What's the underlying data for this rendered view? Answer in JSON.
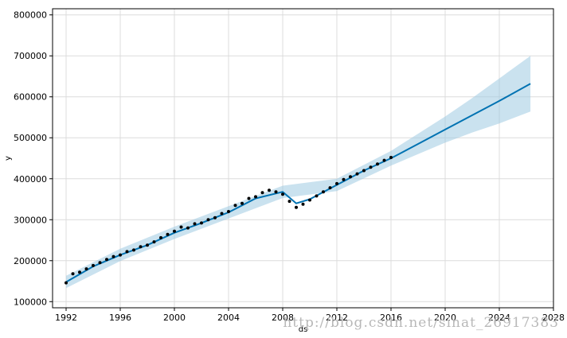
{
  "watermark": "http://blog.csdn.net/sinat_26917383",
  "colors": {
    "forecast_line": "#0072B2",
    "uncertainty_band": "#9ecae1",
    "observed_points": "#000000",
    "grid": "#dcdcdc",
    "axes": "#000000"
  },
  "chart_data": {
    "type": "line",
    "title": "",
    "xlabel": "ds",
    "ylabel": "y",
    "xlim": [
      1991.0,
      2028.0
    ],
    "ylim": [
      85000,
      815000
    ],
    "x_ticks": [
      1992,
      1996,
      2000,
      2004,
      2008,
      2012,
      2016,
      2020,
      2024,
      2028
    ],
    "x_tick_labels": [
      "1992",
      "1996",
      "2000",
      "2004",
      "2008",
      "2012",
      "2016",
      "2020",
      "2024",
      "2028"
    ],
    "y_ticks": [
      100000,
      200000,
      300000,
      400000,
      500000,
      600000,
      700000,
      800000
    ],
    "y_tick_labels": [
      "100000",
      "200000",
      "300000",
      "400000",
      "500000",
      "600000",
      "700000",
      "800000"
    ],
    "grid": true,
    "series": [
      {
        "kind": "observed",
        "style": "scatter",
        "x": [
          1992.0,
          1992.5,
          1993.0,
          1993.5,
          1994.0,
          1994.5,
          1995.0,
          1995.5,
          1996.0,
          1996.5,
          1997.0,
          1997.5,
          1998.0,
          1998.5,
          1999.0,
          1999.5,
          2000.0,
          2000.5,
          2001.0,
          2001.5,
          2002.0,
          2002.5,
          2003.0,
          2003.5,
          2004.0,
          2004.5,
          2005.0,
          2005.5,
          2006.0,
          2006.5,
          2007.0,
          2007.5,
          2008.0,
          2008.5,
          2009.0,
          2009.5,
          2010.0,
          2010.5,
          2011.0,
          2011.5,
          2012.0,
          2012.5,
          2013.0,
          2013.5,
          2014.0,
          2014.5,
          2015.0,
          2015.5,
          2016.0
        ],
        "values": [
          146000,
          168000,
          172000,
          180000,
          188000,
          195000,
          203000,
          210000,
          214000,
          222000,
          226000,
          234000,
          238000,
          246000,
          256000,
          264000,
          272000,
          282000,
          280000,
          290000,
          292000,
          300000,
          305000,
          315000,
          320000,
          335000,
          340000,
          352000,
          356000,
          366000,
          372000,
          368000,
          362000,
          345000,
          330000,
          338000,
          348000,
          358000,
          368000,
          378000,
          388000,
          398000,
          405000,
          412000,
          420000,
          428000,
          436000,
          445000,
          452000
        ]
      },
      {
        "kind": "forecast",
        "style": "line",
        "x": [
          1992.0,
          1994.0,
          1996.0,
          1998.0,
          2000.0,
          2002.0,
          2004.0,
          2006.0,
          2008.0,
          2009.0,
          2010.0,
          2012.0,
          2014.0,
          2016.0,
          2018.0,
          2020.0,
          2022.0,
          2024.0,
          2026.3
        ],
        "values": [
          148000,
          186000,
          214000,
          238000,
          268000,
          292000,
          318000,
          352000,
          368000,
          340000,
          350000,
          385000,
          420000,
          450000,
          485000,
          520000,
          555000,
          590000,
          632000
        ]
      },
      {
        "kind": "uncertainty_upper",
        "style": "band",
        "x": [
          1992.0,
          1996.0,
          2000.0,
          2004.0,
          2008.0,
          2012.0,
          2016.0,
          2018.0,
          2020.0,
          2022.0,
          2024.0,
          2026.3
        ],
        "values": [
          163000,
          229000,
          283000,
          333000,
          383000,
          400000,
          468000,
          510000,
          552000,
          597000,
          645000,
          700000
        ]
      },
      {
        "kind": "uncertainty_lower",
        "style": "band",
        "x": [
          1992.0,
          1996.0,
          2000.0,
          2004.0,
          2008.0,
          2012.0,
          2016.0,
          2018.0,
          2020.0,
          2022.0,
          2024.0,
          2026.3
        ],
        "values": [
          133000,
          199000,
          253000,
          303000,
          353000,
          370000,
          432000,
          460000,
          488000,
          513000,
          535000,
          564000
        ]
      }
    ]
  }
}
